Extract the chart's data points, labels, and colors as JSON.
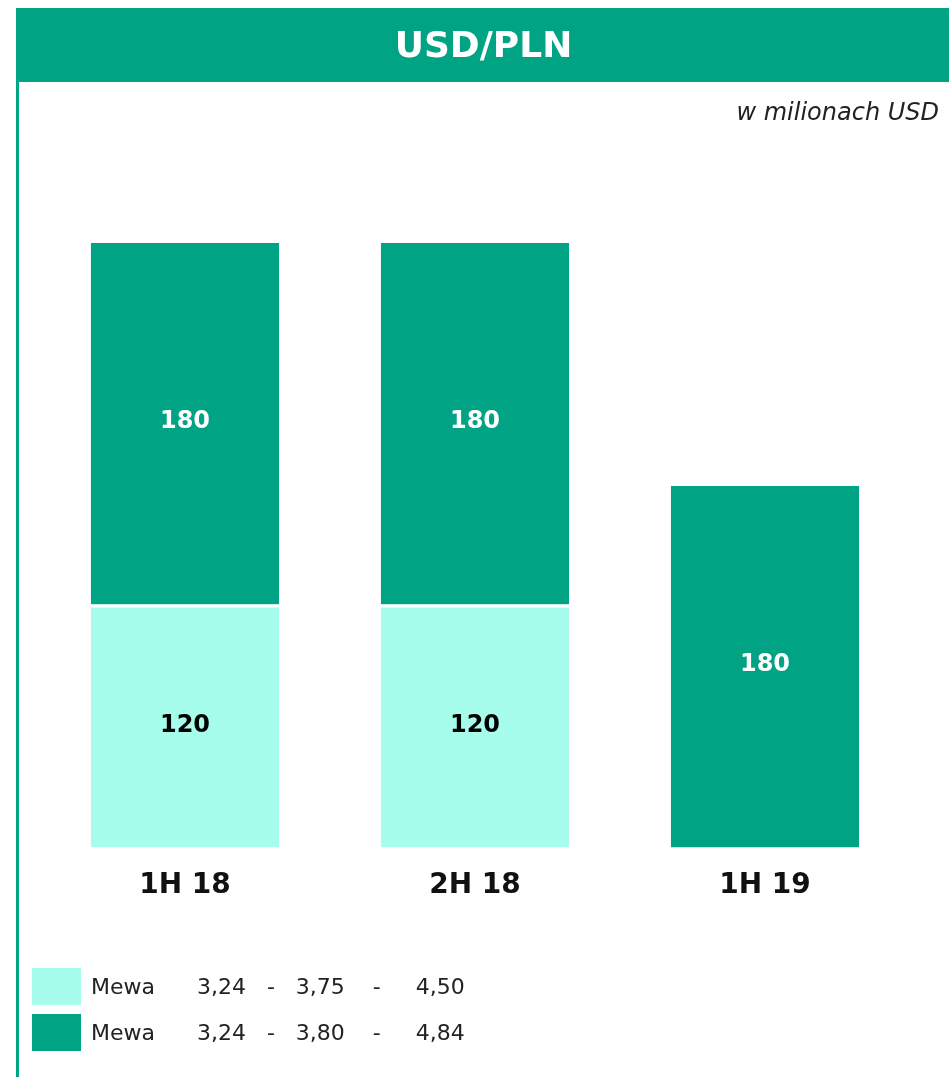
{
  "chart_data": {
    "type": "bar",
    "title": "USD/PLN",
    "subtitle": "w milionach USD",
    "categories": [
      "1H 18",
      "2H 18",
      "1H 19"
    ],
    "stacked": true,
    "data_labels": true,
    "grid": false,
    "legend": "bottom left",
    "series": [
      {
        "name": "Mewa      3,24   -   3,75    -     4,50",
        "color": "#a6fdec",
        "values": [
          120,
          120,
          null
        ]
      },
      {
        "name": "Mewa      3,24   -   3,80    -     4,84",
        "color": "#00a383",
        "values": [
          180,
          180,
          180
        ]
      }
    ]
  }
}
